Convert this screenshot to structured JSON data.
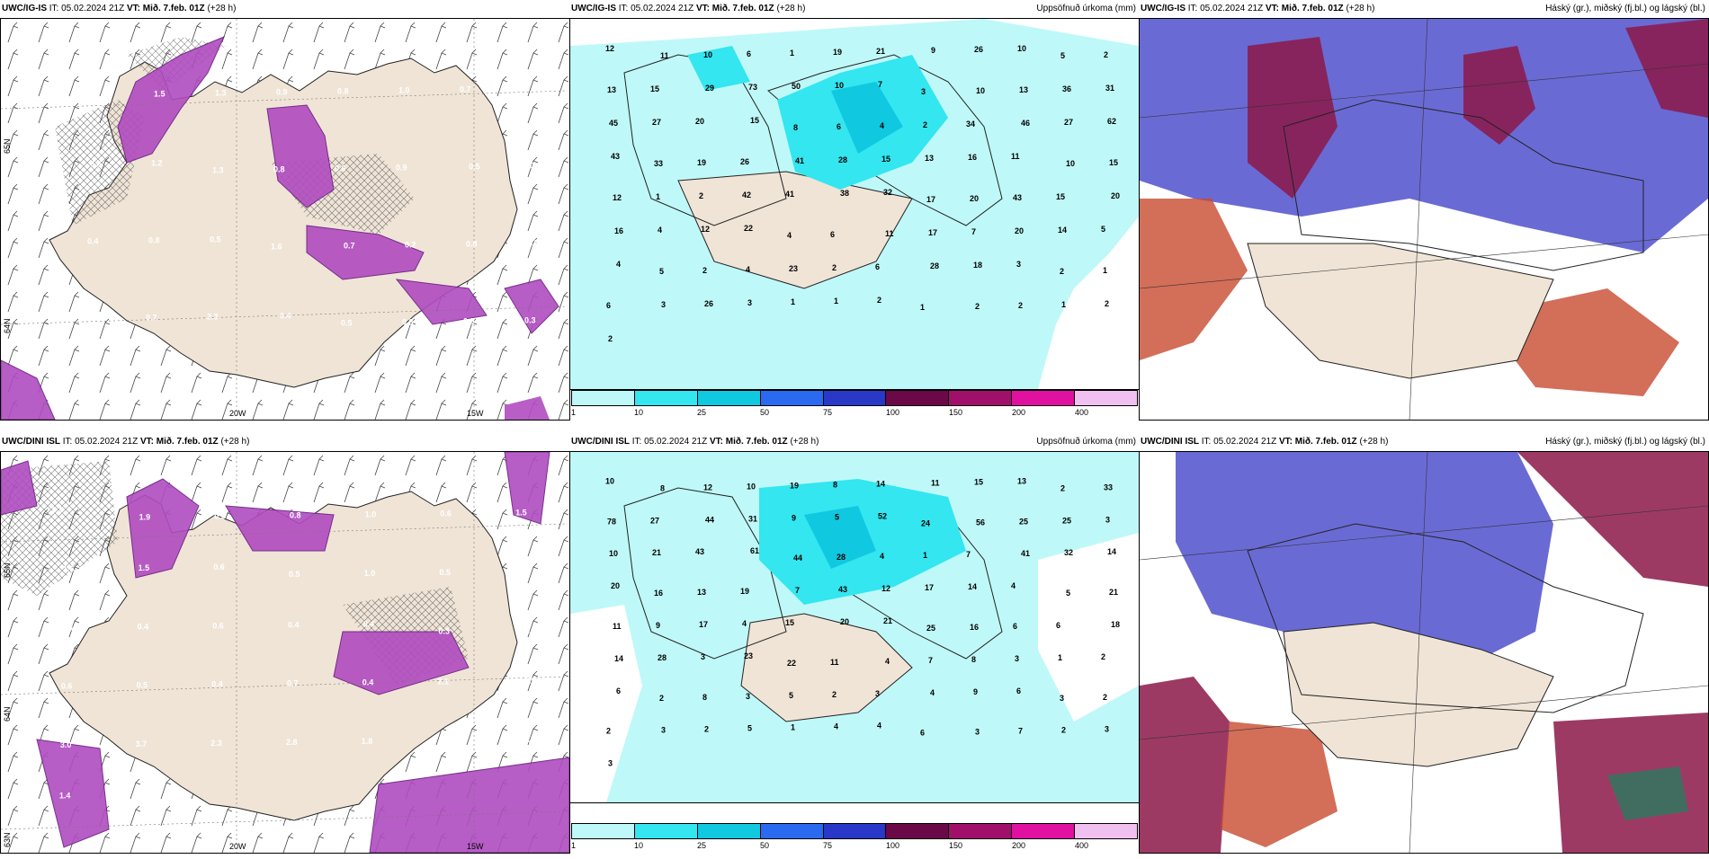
{
  "colors": {
    "land": "#efe4d6",
    "precip_light": "#bff8f8",
    "precip_mid": "#33e6f0",
    "precip_heavy": "#10c8e0",
    "wind_purple": "#b04cc0",
    "cloud_high": "#5a5ad0",
    "cloud_mid": "#8c1848",
    "cloud_low": "#c84a30"
  },
  "panels": {
    "top_left": {
      "model": "UWC/IG-IS",
      "it": "IT: 05.02.2024 21Z",
      "vt_label": "VT:",
      "vt_value": "Mið. 7.feb. 01Z",
      "lead": "(+28 h)",
      "right_title": "",
      "lat_labels": [
        "65N",
        "64N"
      ],
      "lon_labels": [
        "20W",
        "15W"
      ],
      "values": [
        "1.1",
        "1.5",
        "1.3",
        "0.9",
        "0.8",
        "1.0",
        "0.7",
        "1.0",
        "0.8",
        "1.2",
        "1.3",
        "0.8",
        "0.6",
        "0.9",
        "0.5",
        "0.4",
        "0.4",
        "0.8",
        "0.5",
        "1.6",
        "0.7",
        "0.2",
        "0.8",
        "0.9",
        "0.3",
        "0.7",
        "2.3",
        "0.4",
        "0.5",
        "0.3",
        "0.9",
        "0.3"
      ]
    },
    "top_middle": {
      "model": "UWC/IG-IS",
      "it": "IT: 05.02.2024 21Z",
      "vt_label": "VT:",
      "vt_value": "Mið. 7.feb. 01Z",
      "lead": "(+28 h)",
      "right_title": "Uppsöfnuð úrkoma (mm)",
      "lat_labels": [],
      "lon_labels": [],
      "values": [
        "12",
        "11",
        "10",
        "6",
        "1",
        "19",
        "21",
        "9",
        "26",
        "10",
        "5",
        "2",
        "13",
        "15",
        "29",
        "73",
        "50",
        "10",
        "7",
        "3",
        "10",
        "13",
        "36",
        "31",
        "45",
        "27",
        "20",
        "15",
        "8",
        "6",
        "4",
        "2",
        "34",
        "46",
        "27",
        "62",
        "43",
        "33",
        "19",
        "26",
        "41",
        "28",
        "15",
        "13",
        "16",
        "11",
        "10",
        "15",
        "12",
        "1",
        "2",
        "42",
        "41",
        "38",
        "32",
        "17",
        "20",
        "43",
        "15",
        "20",
        "16",
        "4",
        "12",
        "22",
        "4",
        "6",
        "11",
        "17",
        "7",
        "20",
        "14",
        "5",
        "4",
        "5",
        "2",
        "4",
        "23",
        "2",
        "6",
        "28",
        "18",
        "3",
        "2",
        "1",
        "6",
        "3",
        "26",
        "3",
        "1",
        "1",
        "2",
        "1",
        "2",
        "2",
        "1",
        "2",
        "2"
      ],
      "legend_values": [
        "1",
        "10",
        "25",
        "50",
        "75",
        "100",
        "150",
        "200",
        "400"
      ],
      "legend_colors": [
        "#bff8f8",
        "#33e6f0",
        "#10c8e0",
        "#2a6af0",
        "#2a38c8",
        "#6a0848",
        "#a0106a",
        "#e010a0",
        "#f0c0f0"
      ]
    },
    "top_right": {
      "model": "UWC/IG-IS",
      "it": "IT: 05.02.2024 21Z",
      "vt_label": "VT:",
      "vt_value": "Mið. 7.feb. 01Z",
      "lead": "(+28 h)",
      "right_title": "Háský (gr.), miðský (fj.bl.) og lágský (bl.)"
    },
    "bottom_left": {
      "model": "UWC/DINI ISL",
      "it": "IT: 05.02.2024 21Z",
      "vt_label": "VT:",
      "vt_value": "Mið. 7.feb. 01Z",
      "lead": "(+28 h)",
      "right_title": "",
      "lat_labels": [
        "65N",
        "64N",
        "63N"
      ],
      "lon_labels": [
        "20W",
        "15W"
      ],
      "values": [
        "0.3",
        "1.9",
        "0.5",
        "0.8",
        "1.0",
        "0.6",
        "1.5",
        "1.6",
        "1.5",
        "0.6",
        "0.5",
        "1.0",
        "0.5",
        "0.4",
        "0.4",
        "0.4",
        "0.6",
        "0.4",
        "0.4",
        "0.3",
        "1.1",
        "0.6",
        "0.5",
        "0.4",
        "0.7",
        "0.4",
        "2.1",
        "1.9",
        "3.0",
        "3.7",
        "2.3",
        "2.8",
        "1.8",
        "1.9",
        "1.9",
        "1.4",
        "2.3"
      ]
    },
    "bottom_middle": {
      "model": "UWC/DINI ISL",
      "it": "IT: 05.02.2024 21Z",
      "vt_label": "VT:",
      "vt_value": "Mið. 7.feb. 01Z",
      "lead": "(+28 h)",
      "right_title": "Uppsöfnuð úrkoma (mm)",
      "lat_labels": [],
      "lon_labels": [],
      "values": [
        "10",
        "8",
        "12",
        "10",
        "19",
        "8",
        "14",
        "11",
        "15",
        "13",
        "2",
        "33",
        "78",
        "27",
        "44",
        "31",
        "9",
        "5",
        "52",
        "24",
        "56",
        "25",
        "25",
        "3",
        "10",
        "21",
        "43",
        "61",
        "44",
        "28",
        "4",
        "1",
        "7",
        "41",
        "32",
        "14",
        "20",
        "16",
        "13",
        "19",
        "7",
        "43",
        "12",
        "17",
        "14",
        "4",
        "5",
        "21",
        "11",
        "9",
        "17",
        "4",
        "15",
        "20",
        "21",
        "25",
        "16",
        "6",
        "6",
        "18",
        "14",
        "28",
        "3",
        "23",
        "22",
        "11",
        "4",
        "7",
        "8",
        "3",
        "1",
        "2",
        "6",
        "2",
        "8",
        "3",
        "5",
        "2",
        "3",
        "4",
        "9",
        "6",
        "3",
        "2",
        "2",
        "3",
        "2",
        "5",
        "1",
        "4",
        "4",
        "6",
        "3",
        "7",
        "2",
        "3",
        "3"
      ],
      "legend_values": [
        "1",
        "10",
        "25",
        "50",
        "75",
        "100",
        "150",
        "200",
        "400"
      ],
      "legend_colors": [
        "#bff8f8",
        "#33e6f0",
        "#10c8e0",
        "#2a6af0",
        "#2a38c8",
        "#6a0848",
        "#a0106a",
        "#e010a0",
        "#f0c0f0"
      ]
    },
    "bottom_right": {
      "model": "UWC/DINI ISL",
      "it": "IT: 05.02.2024 21Z",
      "vt_label": "VT:",
      "vt_value": "Mið. 7.feb. 01Z",
      "lead": "(+28 h)",
      "right_title": "Háský (gr.), miðský (fj.bl.) og lágský (bl.)"
    }
  }
}
